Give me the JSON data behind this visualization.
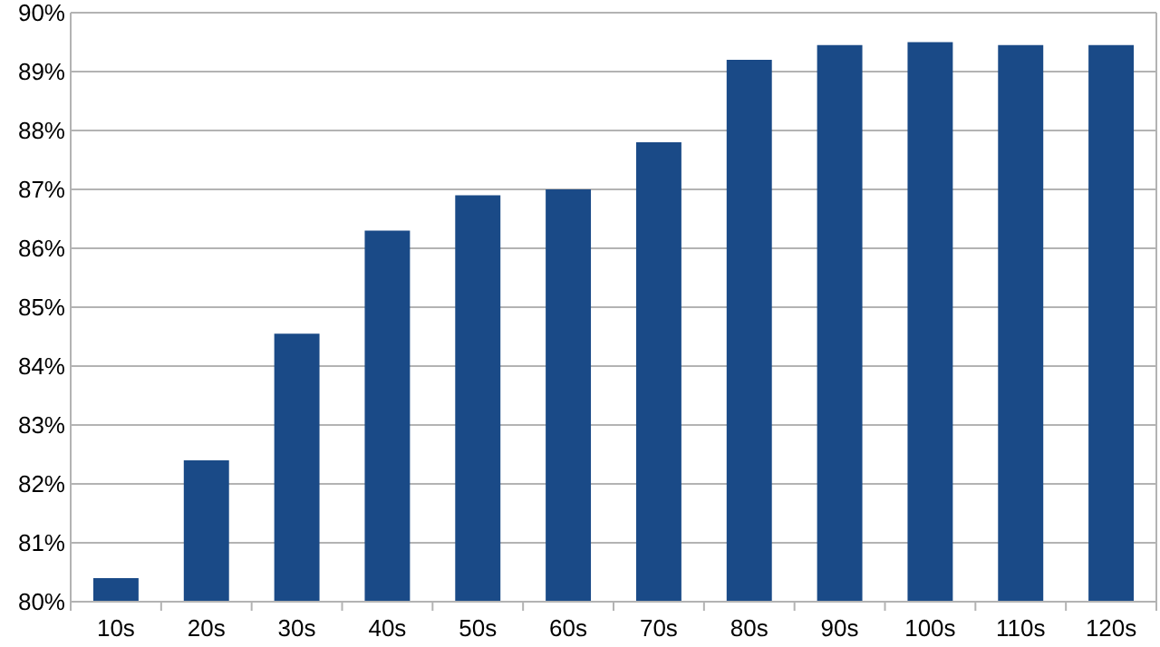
{
  "chart_data": {
    "type": "bar",
    "categories": [
      "10s",
      "20s",
      "30s",
      "40s",
      "50s",
      "60s",
      "70s",
      "80s",
      "90s",
      "100s",
      "110s",
      "120s"
    ],
    "values": [
      80.4,
      82.4,
      84.55,
      86.3,
      86.9,
      87.0,
      87.8,
      89.2,
      89.45,
      89.5,
      89.45,
      89.45
    ],
    "color": "#1a4a87",
    "ylim": [
      80,
      90
    ],
    "yticks": [
      {
        "value": 80,
        "label": "80%"
      },
      {
        "value": 81,
        "label": "81%"
      },
      {
        "value": 82,
        "label": "82%"
      },
      {
        "value": 83,
        "label": "83%"
      },
      {
        "value": 84,
        "label": "84%"
      },
      {
        "value": 85,
        "label": "85%"
      },
      {
        "value": 86,
        "label": "86%"
      },
      {
        "value": 87,
        "label": "87%"
      },
      {
        "value": 88,
        "label": "88%"
      },
      {
        "value": 89,
        "label": "89%"
      },
      {
        "value": 90,
        "label": "90%"
      }
    ],
    "grid": "y"
  }
}
